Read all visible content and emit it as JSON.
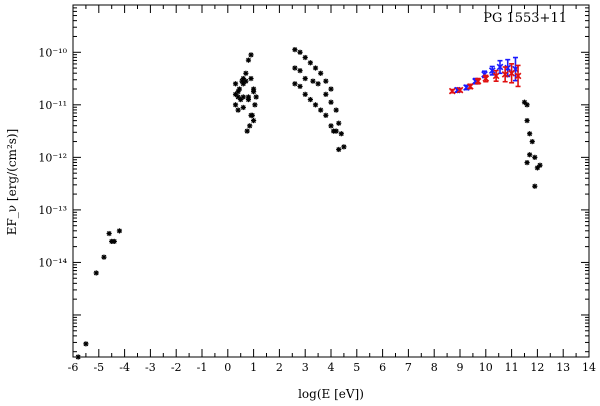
{
  "chart_data": {
    "type": "scatter",
    "title": "PG 1553+11",
    "xlabel": "log(E [eV])",
    "ylabel": "EF_ν [erg/(cm²s)]",
    "x_range": [
      -6,
      14
    ],
    "y_range_log10": [
      -15.8,
      -9.1
    ],
    "y_scale": "log",
    "grid": false,
    "x_ticks": [
      "-6",
      "-5",
      "-4",
      "-3",
      "-2",
      "-1",
      "0",
      "1",
      "2",
      "3",
      "4",
      "5",
      "6",
      "7",
      "8",
      "9",
      "10",
      "11",
      "12",
      "13",
      "14"
    ],
    "y_ticks": [
      {
        "label": "10⁻¹⁰",
        "exp": -10
      },
      {
        "label": "10⁻¹¹",
        "exp": -11
      },
      {
        "label": "10⁻¹²",
        "exp": -12
      },
      {
        "label": "10⁻¹³",
        "exp": -13
      },
      {
        "label": "10⁻¹⁴",
        "exp": -14
      }
    ],
    "colors": {
      "archival": "#000000",
      "fermi": "#1a1aff",
      "agile": "#e01010"
    },
    "series": [
      {
        "kind": "archival",
        "marker": "star",
        "points": [
          [
            -5.8,
            -15.8
          ],
          [
            -5.5,
            -15.55
          ],
          [
            -5.1,
            -14.2
          ],
          [
            -4.8,
            -13.9
          ],
          [
            -4.6,
            -13.45
          ],
          [
            -4.5,
            -13.6
          ],
          [
            -4.4,
            -13.6
          ],
          [
            -4.2,
            -13.4
          ],
          [
            0.3,
            -10.8
          ],
          [
            0.4,
            -10.75
          ],
          [
            0.55,
            -10.55
          ],
          [
            0.6,
            -10.5
          ],
          [
            0.7,
            -10.4
          ],
          [
            0.8,
            -10.15
          ],
          [
            0.9,
            -10.05
          ],
          [
            0.3,
            -10.6
          ],
          [
            0.45,
            -10.7
          ],
          [
            0.6,
            -10.6
          ],
          [
            0.7,
            -10.55
          ],
          [
            0.9,
            -10.5
          ],
          [
            1.0,
            -10.75
          ],
          [
            0.4,
            -10.85
          ],
          [
            0.6,
            -10.85
          ],
          [
            0.8,
            -10.9
          ],
          [
            1.0,
            -10.7
          ],
          [
            1.1,
            -10.85
          ],
          [
            0.3,
            -11.0
          ],
          [
            0.5,
            -10.9
          ],
          [
            0.8,
            -10.85
          ],
          [
            1.05,
            -11.0
          ],
          [
            0.4,
            -11.1
          ],
          [
            0.6,
            -11.05
          ],
          [
            0.9,
            -11.2
          ],
          [
            1.0,
            -11.3
          ],
          [
            0.75,
            -11.5
          ],
          [
            0.85,
            -11.4
          ],
          [
            0.95,
            -11.2
          ],
          [
            2.6,
            -9.95
          ],
          [
            2.8,
            -10.0
          ],
          [
            3.0,
            -10.1
          ],
          [
            3.2,
            -10.2
          ],
          [
            3.4,
            -10.3
          ],
          [
            3.6,
            -10.4
          ],
          [
            3.8,
            -10.55
          ],
          [
            4.0,
            -10.7
          ],
          [
            2.6,
            -10.3
          ],
          [
            2.8,
            -10.35
          ],
          [
            3.0,
            -10.5
          ],
          [
            3.3,
            -10.55
          ],
          [
            3.5,
            -10.6
          ],
          [
            3.8,
            -10.8
          ],
          [
            4.0,
            -10.95
          ],
          [
            4.2,
            -11.1
          ],
          [
            4.3,
            -11.35
          ],
          [
            2.6,
            -10.6
          ],
          [
            2.8,
            -10.65
          ],
          [
            3.0,
            -10.8
          ],
          [
            3.2,
            -10.9
          ],
          [
            3.4,
            -11.0
          ],
          [
            3.6,
            -11.1
          ],
          [
            3.8,
            -11.2
          ],
          [
            4.0,
            -11.4
          ],
          [
            4.2,
            -11.5
          ],
          [
            4.4,
            -11.55
          ],
          [
            4.3,
            -11.85
          ],
          [
            4.5,
            -11.8
          ],
          [
            4.1,
            -11.5
          ],
          [
            11.5,
            -10.95
          ],
          [
            11.6,
            -11.0
          ],
          [
            11.6,
            -11.3
          ],
          [
            11.7,
            -11.55
          ],
          [
            11.8,
            -11.7
          ],
          [
            11.7,
            -11.95
          ],
          [
            11.6,
            -12.1
          ],
          [
            11.9,
            -12.0
          ],
          [
            12.0,
            -12.2
          ],
          [
            12.1,
            -12.15
          ],
          [
            11.9,
            -12.55
          ]
        ]
      },
      {
        "kind": "fermi",
        "marker": "x-errorbar",
        "points": [
          [
            8.9,
            -10.72
          ],
          [
            9.25,
            -10.67
          ],
          [
            9.6,
            -10.55
          ],
          [
            9.95,
            -10.42
          ],
          [
            10.25,
            -10.35
          ],
          [
            10.55,
            -10.28
          ],
          [
            10.85,
            -10.3
          ],
          [
            11.15,
            -10.32
          ]
        ],
        "err": [
          0.04,
          0.04,
          0.05,
          0.06,
          0.08,
          0.12,
          0.16,
          0.22
        ]
      },
      {
        "kind": "agile",
        "marker": "x-errorbar",
        "points": [
          [
            8.7,
            -10.74
          ],
          [
            9.0,
            -10.72
          ],
          [
            9.4,
            -10.65
          ],
          [
            9.7,
            -10.55
          ],
          [
            10.0,
            -10.5
          ],
          [
            10.4,
            -10.45
          ],
          [
            10.75,
            -10.42
          ],
          [
            11.0,
            -10.4
          ],
          [
            11.25,
            -10.45
          ]
        ],
        "err": [
          0.03,
          0.03,
          0.04,
          0.05,
          0.06,
          0.1,
          0.14,
          0.18,
          0.2
        ]
      }
    ]
  }
}
